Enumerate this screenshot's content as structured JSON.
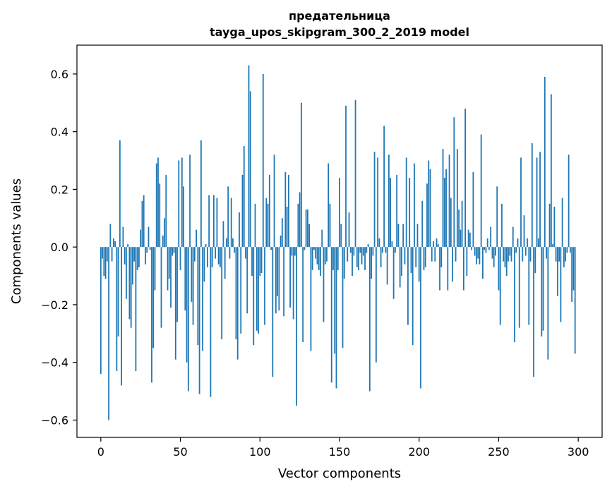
{
  "chart_data": {
    "type": "bar",
    "title_line1": "предательница",
    "title_line2": "tayga_upos_skipgram_300_2_2019 model",
    "xlabel": "Vector components",
    "ylabel": "Components values",
    "xlim": [
      -15,
      315
    ],
    "ylim": [
      -0.66,
      0.7
    ],
    "x_ticks": [
      0,
      50,
      100,
      150,
      200,
      250,
      300
    ],
    "x_tick_labels": [
      "0",
      "50",
      "100",
      "150",
      "200",
      "250",
      "300"
    ],
    "y_ticks": [
      -0.6,
      -0.4,
      -0.2,
      0.0,
      0.2,
      0.4,
      0.6
    ],
    "y_tick_labels": [
      "−0.6",
      "−0.4",
      "−0.2",
      "0.0",
      "0.2",
      "0.4",
      "0.6"
    ],
    "grid": false,
    "bar_color": "#1f77b4",
    "values": [
      -0.44,
      -0.04,
      -0.1,
      -0.11,
      -0.05,
      -0.6,
      0.08,
      -0.05,
      0.03,
      0.02,
      -0.43,
      -0.31,
      0.37,
      -0.48,
      0.07,
      -0.06,
      -0.18,
      0.01,
      -0.25,
      -0.28,
      -0.13,
      -0.05,
      -0.43,
      -0.08,
      -0.07,
      0.06,
      0.16,
      0.18,
      -0.06,
      -0.02,
      0.07,
      -0.01,
      -0.47,
      -0.35,
      -0.15,
      0.29,
      0.31,
      0.22,
      -0.28,
      0.04,
      0.1,
      0.25,
      -0.15,
      -0.11,
      -0.21,
      -0.03,
      -0.02,
      -0.39,
      -0.26,
      0.3,
      -0.08,
      0.31,
      0.21,
      -0.22,
      -0.4,
      -0.5,
      0.32,
      -0.19,
      -0.27,
      -0.05,
      0.06,
      -0.34,
      -0.51,
      0.37,
      -0.36,
      -0.12,
      0.01,
      -0.07,
      0.18,
      -0.52,
      -0.07,
      0.18,
      -0.04,
      0.17,
      -0.06,
      -0.07,
      -0.32,
      0.09,
      -0.11,
      0.03,
      0.21,
      -0.04,
      0.17,
      0.03,
      -0.02,
      -0.32,
      -0.39,
      0.12,
      -0.3,
      0.25,
      0.35,
      -0.04,
      -0.23,
      0.63,
      0.54,
      -0.1,
      -0.34,
      0.15,
      -0.29,
      -0.3,
      -0.1,
      -0.09,
      0.6,
      -0.27,
      0.17,
      0.15,
      0.25,
      -0.01,
      -0.45,
      0.32,
      -0.23,
      -0.17,
      -0.22,
      0.04,
      0.1,
      -0.24,
      0.26,
      0.14,
      0.25,
      -0.21,
      -0.03,
      -0.25,
      -0.03,
      -0.55,
      0.15,
      0.19,
      0.5,
      -0.33,
      -0.01,
      0.13,
      0.13,
      0.08,
      -0.36,
      -0.08,
      -0.01,
      -0.04,
      -0.06,
      -0.08,
      -0.1,
      0.06,
      -0.26,
      -0.06,
      -0.05,
      0.29,
      0.15,
      -0.47,
      -0.08,
      -0.37,
      -0.49,
      -0.08,
      0.24,
      0.08,
      -0.35,
      -0.11,
      0.49,
      -0.05,
      0.12,
      -0.02,
      -0.1,
      -0.03,
      0.51,
      -0.07,
      -0.08,
      -0.02,
      -0.06,
      -0.03,
      -0.08,
      -0.02,
      0.01,
      -0.5,
      -0.11,
      -0.03,
      0.33,
      -0.4,
      0.31,
      0.03,
      -0.07,
      -0.02,
      0.42,
      -0.02,
      -0.13,
      0.32,
      0.24,
      0.02,
      -0.18,
      -0.02,
      0.25,
      0.08,
      -0.14,
      -0.1,
      0.08,
      -0.06,
      0.31,
      -0.27,
      0.24,
      -0.09,
      -0.34,
      0.29,
      -0.07,
      0.08,
      -0.12,
      -0.49,
      0.16,
      -0.08,
      -0.07,
      0.22,
      0.3,
      0.27,
      -0.05,
      0.02,
      -0.05,
      0.03,
      0.01,
      -0.15,
      -0.07,
      0.34,
      0.24,
      0.27,
      -0.15,
      0.32,
      0.17,
      -0.12,
      0.45,
      -0.05,
      0.34,
      0.13,
      0.06,
      0.16,
      -0.15,
      0.48,
      -0.1,
      0.06,
      0.05,
      -0.01,
      0.26,
      -0.03,
      -0.06,
      -0.04,
      -0.06,
      0.39,
      -0.11,
      -0.01,
      -0.02,
      0.03,
      -0.01,
      0.07,
      -0.04,
      -0.07,
      -0.03,
      0.21,
      -0.15,
      -0.27,
      0.15,
      -0.05,
      -0.07,
      -0.1,
      -0.05,
      -0.03,
      -0.05,
      0.07,
      -0.33,
      -0.02,
      0.03,
      -0.28,
      0.31,
      -0.05,
      0.11,
      -0.03,
      0.03,
      -0.27,
      -0.05,
      0.36,
      -0.45,
      -0.09,
      0.31,
      0.03,
      0.33,
      -0.31,
      -0.29,
      0.59,
      -0.04,
      -0.39,
      0.15,
      0.53,
      0.01,
      0.14,
      -0.05,
      -0.17,
      -0.05,
      -0.26,
      0.17,
      -0.07,
      -0.05,
      -0.02,
      0.32,
      -0.02,
      -0.19,
      -0.15,
      -0.37
    ]
  }
}
